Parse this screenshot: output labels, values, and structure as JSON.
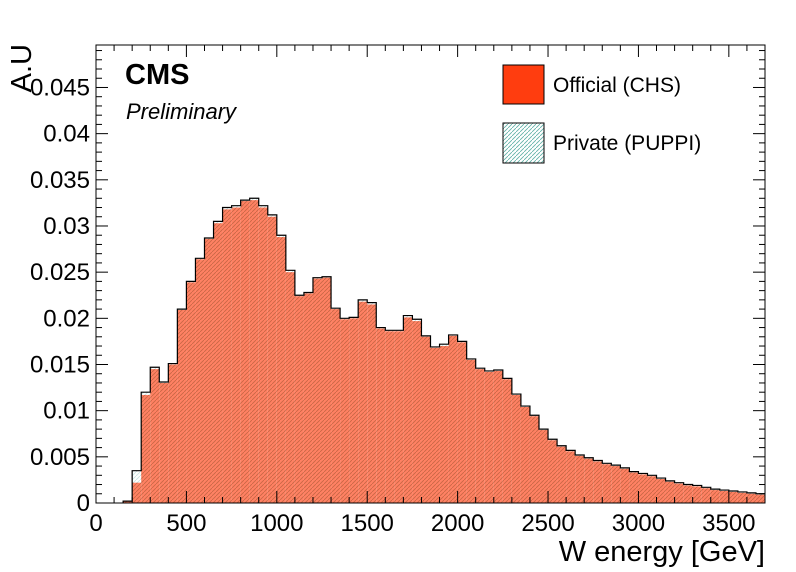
{
  "chart_data": {
    "type": "area",
    "title": "",
    "xlabel": "W energy [GeV]",
    "ylabel": "A.U",
    "xlim": [
      0,
      3700
    ],
    "ylim": [
      0,
      0.0496
    ],
    "bin_width": 50,
    "bin_start": 150,
    "xticks": [
      "0",
      "500",
      "1000",
      "1500",
      "2000",
      "2500",
      "3000",
      "3500"
    ],
    "xtick_values": [
      0,
      500,
      1000,
      1500,
      2000,
      2500,
      3000,
      3500
    ],
    "yticks": [
      "0",
      "0.005",
      "0.01",
      "0.015",
      "0.02",
      "0.025",
      "0.03",
      "0.035",
      "0.04",
      "0.045"
    ],
    "ytick_values": [
      0,
      0.005,
      0.01,
      0.015,
      0.02,
      0.025,
      0.03,
      0.035,
      0.04,
      0.045
    ],
    "grid": false,
    "legend_position": "top-right",
    "annotations": {
      "experiment": "CMS",
      "status": "Preliminary"
    },
    "series": [
      {
        "name": "Official (CHS)",
        "style": "filled",
        "color": "#ff3d0f",
        "values": [
          0.0002,
          0.0022,
          0.0117,
          0.0145,
          0.013,
          0.015,
          0.0209,
          0.0239,
          0.0264,
          0.0286,
          0.0303,
          0.0318,
          0.032,
          0.0327,
          0.0328,
          0.032,
          0.031,
          0.0288,
          0.025,
          0.0224,
          0.0227,
          0.0243,
          0.0244,
          0.021,
          0.0199,
          0.02,
          0.0218,
          0.0215,
          0.0189,
          0.0186,
          0.0186,
          0.0201,
          0.0197,
          0.018,
          0.0168,
          0.017,
          0.0181,
          0.0174,
          0.0155,
          0.0145,
          0.0142,
          0.0143,
          0.0134,
          0.0117,
          0.0104,
          0.0094,
          0.0079,
          0.0068,
          0.0061,
          0.0056,
          0.0051,
          0.0048,
          0.0045,
          0.0042,
          0.004,
          0.0037,
          0.0033,
          0.0031,
          0.0029,
          0.0026,
          0.0023,
          0.0021,
          0.0019,
          0.0018,
          0.0016,
          0.0014,
          0.0013,
          0.0012,
          0.0011,
          0.001,
          0.0009
        ]
      },
      {
        "name": "Private (PUPPI)",
        "style": "hatched-outline",
        "color": "#5fb0a6",
        "values": [
          0.0002,
          0.0035,
          0.012,
          0.0147,
          0.0131,
          0.0151,
          0.021,
          0.024,
          0.0265,
          0.0287,
          0.0305,
          0.032,
          0.0322,
          0.0328,
          0.033,
          0.0322,
          0.0312,
          0.029,
          0.0252,
          0.0225,
          0.0228,
          0.0244,
          0.0245,
          0.0211,
          0.02,
          0.0201,
          0.022,
          0.0217,
          0.019,
          0.0187,
          0.0187,
          0.0203,
          0.0199,
          0.0181,
          0.0169,
          0.0172,
          0.0182,
          0.0175,
          0.0156,
          0.0146,
          0.0143,
          0.0144,
          0.0135,
          0.0118,
          0.0105,
          0.0095,
          0.008,
          0.0069,
          0.0062,
          0.0057,
          0.0052,
          0.0049,
          0.0046,
          0.0043,
          0.0041,
          0.0038,
          0.0034,
          0.0032,
          0.003,
          0.0027,
          0.0024,
          0.0022,
          0.002,
          0.0019,
          0.0017,
          0.0015,
          0.0014,
          0.0013,
          0.0012,
          0.0011,
          0.001
        ]
      }
    ]
  }
}
